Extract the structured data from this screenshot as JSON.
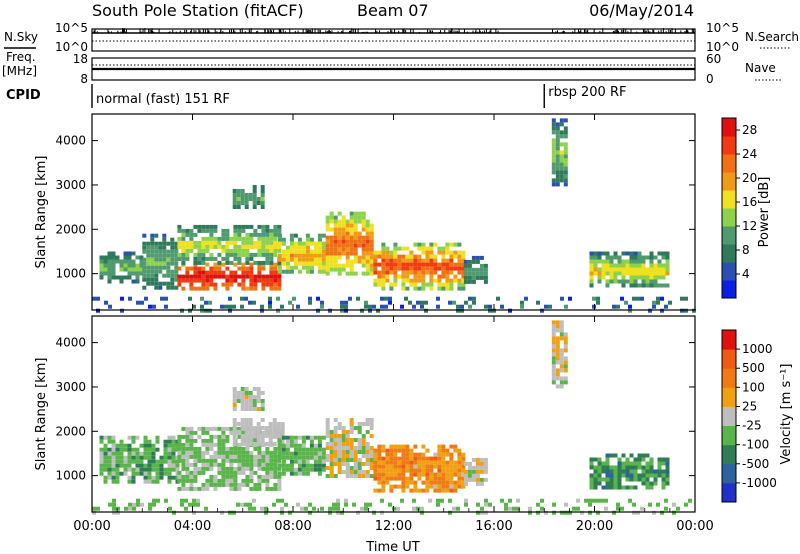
{
  "header": {
    "station": "South Pole Station (fitACF)",
    "beam": "Beam 07",
    "date": "06/May/2014"
  },
  "labels": {
    "nsky": "N.Sky",
    "nsearch": "N.Search",
    "freq": "Freq.",
    "freq_unit": "[MHz]",
    "nave": "Nave",
    "cpid": "CPID",
    "nsky_ticks": [
      "10^5",
      "10^0"
    ],
    "nsearch_ticks": [
      "10^5",
      "10^0"
    ],
    "freq_ticks": [
      "18",
      "8"
    ],
    "nave_ticks": [
      "60",
      "0"
    ]
  },
  "cpid_segments": [
    {
      "label": "normal (fast) 151 RF",
      "start_hour": 0
    },
    {
      "label": "rbsp 200 RF",
      "start_hour": 18.0
    }
  ],
  "colors": {
    "power": [
      "#0a1ee6",
      "#2b4fb4",
      "#2f7a5a",
      "#4f9a6e",
      "#8cd24a",
      "#f0e020",
      "#f09a18",
      "#f07014",
      "#f03a12",
      "#e01010"
    ],
    "velocity": [
      "#2030c8",
      "#2c62a0",
      "#2f7d58",
      "#59b44a",
      "#bebebe",
      "#f0a010",
      "#f07a14",
      "#f05a14",
      "#e01010"
    ]
  },
  "chart_data": [
    {
      "type": "heatmap",
      "title": "",
      "xlabel": "Time UT",
      "ylabel": "Slant Range [km]",
      "xlim": [
        0,
        24
      ],
      "ylim": [
        180,
        4600
      ],
      "x_tick_labels": [
        "00:00",
        "04:00",
        "08:00",
        "12:00",
        "16:00",
        "20:00",
        "00:00"
      ],
      "y_tick_labels": [
        "1000",
        "2000",
        "3000",
        "4000"
      ],
      "colorbar": {
        "label": "Power [dB]",
        "ticks": [
          "4",
          "8",
          "12",
          "16",
          "20",
          "24",
          "28"
        ],
        "range": [
          0,
          30
        ]
      },
      "regions": [
        {
          "t0": 0.3,
          "t1": 2.0,
          "r0": 850,
          "r1": 1500,
          "v0": 5,
          "v1": 14
        },
        {
          "t0": 2.0,
          "t1": 3.4,
          "r0": 700,
          "r1": 1900,
          "v0": 5,
          "v1": 13
        },
        {
          "t0": 3.4,
          "t1": 7.4,
          "r0": 700,
          "r1": 1250,
          "v0": 20,
          "v1": 30
        },
        {
          "t0": 3.4,
          "t1": 7.4,
          "r0": 1250,
          "r1": 2100,
          "v0": 6,
          "v1": 18
        },
        {
          "t0": 5.6,
          "t1": 6.8,
          "r0": 2500,
          "r1": 3000,
          "v0": 5,
          "v1": 14
        },
        {
          "t0": 7.4,
          "t1": 9.3,
          "r0": 1000,
          "r1": 1900,
          "v0": 8,
          "v1": 22
        },
        {
          "t0": 9.3,
          "t1": 11.2,
          "r0": 1000,
          "r1": 2400,
          "v0": 10,
          "v1": 26
        },
        {
          "t0": 11.2,
          "t1": 14.8,
          "r0": 700,
          "r1": 1700,
          "v0": 10,
          "v1": 28
        },
        {
          "t0": 14.8,
          "t1": 15.6,
          "r0": 800,
          "r1": 1400,
          "v0": 4,
          "v1": 12
        },
        {
          "t0": 19.8,
          "t1": 22.9,
          "r0": 700,
          "r1": 1500,
          "v0": 5,
          "v1": 20
        },
        {
          "t0": 18.3,
          "t1": 18.9,
          "r0": 3000,
          "r1": 4500,
          "v0": 4,
          "v1": 16
        },
        {
          "t0": 0,
          "t1": 24,
          "r0": 180,
          "r1": 480,
          "v0": 2,
          "v1": 10
        }
      ]
    },
    {
      "type": "heatmap",
      "title": "",
      "xlabel": "Time UT",
      "ylabel": "Slant Range [km]",
      "xlim": [
        0,
        24
      ],
      "ylim": [
        180,
        4600
      ],
      "x_tick_labels": [
        "00:00",
        "04:00",
        "08:00",
        "12:00",
        "16:00",
        "20:00",
        "00:00"
      ],
      "y_tick_labels": [
        "1000",
        "2000",
        "3000",
        "4000"
      ],
      "colorbar": {
        "label": "Velocity [m s⁻¹]",
        "ticks": [
          "1000",
          "500",
          "100",
          "25",
          "-25",
          "-100",
          "-500",
          "-1000"
        ],
        "range": [
          -1200,
          1200
        ]
      },
      "regions": [
        {
          "t0": 0.3,
          "t1": 3.4,
          "r0": 850,
          "r1": 1900,
          "v0": -500,
          "v1": -60
        },
        {
          "t0": 3.4,
          "t1": 7.4,
          "r0": 700,
          "r1": 2100,
          "v0": -400,
          "v1": 40
        },
        {
          "t0": 5.6,
          "t1": 7.6,
          "r0": 1700,
          "r1": 2300,
          "v0": -30,
          "v1": 30
        },
        {
          "t0": 5.6,
          "t1": 6.8,
          "r0": 2500,
          "r1": 3000,
          "v0": -200,
          "v1": 150
        },
        {
          "t0": 7.4,
          "t1": 9.3,
          "r0": 1000,
          "r1": 1900,
          "v0": -450,
          "v1": -80
        },
        {
          "t0": 9.3,
          "t1": 11.2,
          "r0": 1000,
          "r1": 2300,
          "v0": -300,
          "v1": 400
        },
        {
          "t0": 11.2,
          "t1": 14.8,
          "r0": 700,
          "r1": 1700,
          "v0": 100,
          "v1": 700
        },
        {
          "t0": 14.8,
          "t1": 15.6,
          "r0": 800,
          "r1": 1400,
          "v0": -200,
          "v1": 300
        },
        {
          "t0": 19.8,
          "t1": 22.9,
          "r0": 700,
          "r1": 1500,
          "v0": -700,
          "v1": -150
        },
        {
          "t0": 18.3,
          "t1": 18.9,
          "r0": 3000,
          "r1": 4500,
          "v0": -300,
          "v1": 300
        },
        {
          "t0": 0,
          "t1": 24,
          "r0": 180,
          "r1": 480,
          "v0": -400,
          "v1": -30
        }
      ]
    }
  ]
}
